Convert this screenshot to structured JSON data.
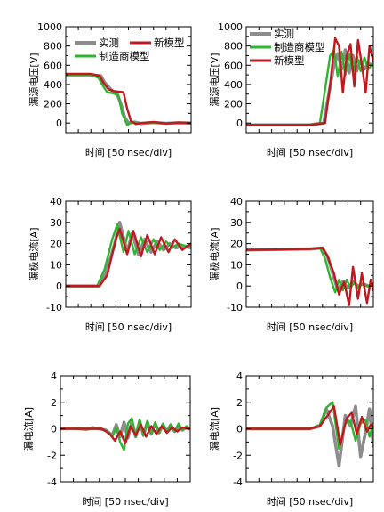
{
  "colors": {
    "measured": "#8c8c8c",
    "vendor": "#2fb52f",
    "new": "#c0181e"
  },
  "chart_data": [
    {
      "type": "line",
      "id": "vds-off",
      "ylabel": "漏源电压[V]",
      "xlabel": "时间 [50 nsec/div]",
      "ylim": [
        -100,
        1000
      ],
      "yticks": [
        0,
        200,
        400,
        600,
        800,
        1000
      ],
      "xlim": [
        0,
        10
      ],
      "xdivs": 10,
      "legend": {
        "placement": "top",
        "entries": [
          {
            "series": "measured",
            "label": "实测"
          },
          {
            "series": "new",
            "label": "新模型"
          },
          {
            "series": "vendor",
            "label": "制造商模型"
          }
        ]
      },
      "series": [
        {
          "name": "实测",
          "key": "measured",
          "x": [
            0,
            2,
            2.8,
            3.1,
            3.8,
            4.1,
            4.4,
            4.7,
            5.0,
            5.5,
            6,
            7,
            8,
            9,
            10
          ],
          "y": [
            500,
            500,
            490,
            420,
            320,
            300,
            200,
            60,
            0,
            10,
            -5,
            5,
            -3,
            3,
            0
          ]
        },
        {
          "name": "制造商模型",
          "key": "vendor",
          "x": [
            0,
            2,
            2.6,
            3.0,
            3.3,
            3.7,
            4.2,
            4.5,
            4.9,
            5.3,
            5.8,
            6.5,
            7.5,
            10
          ],
          "y": [
            500,
            500,
            470,
            380,
            320,
            310,
            290,
            100,
            -20,
            10,
            -5,
            5,
            0,
            0
          ]
        },
        {
          "name": "新模型",
          "key": "new",
          "x": [
            0,
            2,
            2.7,
            3.0,
            3.4,
            3.9,
            4.6,
            4.9,
            5.2,
            5.6,
            6,
            7,
            8,
            9,
            10
          ],
          "y": [
            510,
            510,
            490,
            420,
            350,
            330,
            320,
            150,
            20,
            -10,
            0,
            10,
            -5,
            5,
            0
          ]
        }
      ]
    },
    {
      "type": "line",
      "id": "vds-on",
      "ylabel": "漏源电压[V]",
      "xlabel": "时间 [50 nsec/div]",
      "ylim": [
        -100,
        1000
      ],
      "yticks": [
        0,
        200,
        400,
        600,
        800,
        1000
      ],
      "xlim": [
        0,
        10
      ],
      "xdivs": 10,
      "legend": {
        "placement": "top-left",
        "entries": [
          {
            "series": "measured",
            "label": "实测"
          },
          {
            "series": "vendor",
            "label": "制造商模型"
          },
          {
            "series": "new",
            "label": "新模型"
          }
        ]
      },
      "series": [
        {
          "name": "实测",
          "key": "measured",
          "x": [
            0,
            5,
            6.1,
            6.5,
            6.9,
            7.2,
            7.5,
            7.8,
            8.1,
            8.4,
            8.7,
            9.0,
            9.3,
            9.6,
            10
          ],
          "y": [
            -20,
            -20,
            0,
            300,
            600,
            720,
            560,
            760,
            520,
            700,
            540,
            650,
            560,
            620,
            600
          ]
        },
        {
          "name": "制造商模型",
          "key": "vendor",
          "x": [
            0,
            5,
            5.8,
            6.2,
            6.6,
            6.9,
            7.2,
            7.5,
            7.8,
            8.1,
            8.4,
            8.7,
            9.0,
            9.3,
            9.6,
            10
          ],
          "y": [
            -20,
            -20,
            0,
            350,
            700,
            760,
            480,
            740,
            500,
            720,
            520,
            700,
            540,
            680,
            560,
            620
          ]
        },
        {
          "name": "新模型",
          "key": "new",
          "x": [
            0,
            5,
            6.2,
            6.6,
            7.0,
            7.3,
            7.6,
            7.9,
            8.2,
            8.5,
            8.8,
            9.1,
            9.4,
            9.7,
            10
          ],
          "y": [
            -20,
            -20,
            0,
            400,
            880,
            800,
            320,
            700,
            820,
            380,
            860,
            600,
            320,
            800,
            640
          ]
        }
      ]
    },
    {
      "type": "line",
      "id": "id-off",
      "ylabel": "漏极电流[A]",
      "xlabel": "时间 [50 nsec/div]",
      "ylim": [
        -10,
        40
      ],
      "yticks": [
        -10,
        0,
        10,
        20,
        30,
        40
      ],
      "xlim": [
        0,
        10
      ],
      "xdivs": 10,
      "series": [
        {
          "name": "实测",
          "key": "measured",
          "x": [
            0,
            2,
            2.6,
            3.2,
            3.9,
            4.3,
            4.9,
            5.3,
            5.8,
            6.3,
            6.8,
            7.3,
            7.8,
            8.3,
            8.8,
            9.3,
            10
          ],
          "y": [
            0,
            0,
            0,
            6,
            20,
            30,
            16,
            25,
            15,
            22,
            16,
            21,
            17,
            20,
            18,
            19,
            18
          ]
        },
        {
          "name": "制造商模型",
          "key": "vendor",
          "x": [
            0,
            2,
            2.5,
            3.1,
            3.7,
            4.1,
            4.6,
            5.0,
            5.5,
            6.0,
            6.5,
            7.0,
            7.5,
            8.0,
            8.5,
            9.0,
            9.5,
            10
          ],
          "y": [
            0,
            0,
            0,
            8,
            22,
            29,
            16,
            26,
            15,
            23,
            16,
            22,
            17,
            21,
            18,
            20,
            19,
            19
          ]
        },
        {
          "name": "新模型",
          "key": "new",
          "x": [
            0,
            2,
            2.7,
            3.3,
            4.0,
            4.3,
            4.9,
            5.4,
            6.0,
            6.5,
            7.1,
            7.6,
            8.2,
            8.7,
            9.3,
            10
          ],
          "y": [
            0,
            0,
            0,
            5,
            22,
            27,
            15,
            26,
            14,
            24,
            15,
            23,
            16,
            22,
            17,
            20
          ]
        }
      ]
    },
    {
      "type": "line",
      "id": "id-on",
      "ylabel": "漏极电流[A]",
      "xlabel": "时间 [50 nsec/div]",
      "ylim": [
        -10,
        40
      ],
      "yticks": [
        -10,
        0,
        10,
        20,
        30,
        40
      ],
      "xlim": [
        0,
        10
      ],
      "xdivs": 10,
      "series": [
        {
          "name": "实测",
          "key": "measured",
          "x": [
            0,
            5,
            6.0,
            6.4,
            6.8,
            7.2,
            7.6,
            8.0,
            8.4,
            8.8,
            9.2,
            9.6,
            10
          ],
          "y": [
            17,
            17.5,
            18,
            14,
            6,
            -2,
            2,
            -1,
            2,
            0,
            1,
            0,
            1
          ]
        },
        {
          "name": "制造商模型",
          "key": "vendor",
          "x": [
            0,
            5,
            5.8,
            6.2,
            6.6,
            7.0,
            7.3,
            7.6,
            7.9,
            8.2,
            8.5,
            8.8,
            9.1,
            9.4,
            9.7,
            10
          ],
          "y": [
            17,
            17.5,
            18,
            13,
            4,
            -3,
            3,
            -2,
            3,
            -1,
            2,
            -1,
            1,
            0,
            0,
            1
          ]
        },
        {
          "name": "新模型",
          "key": "new",
          "x": [
            0,
            5,
            6.0,
            6.4,
            6.9,
            7.3,
            7.7,
            8.1,
            8.4,
            8.8,
            9.1,
            9.5,
            9.8,
            10
          ],
          "y": [
            17,
            17.5,
            18,
            14,
            6,
            -4,
            2,
            -9,
            9,
            -6,
            6,
            -8,
            3,
            -2
          ]
        }
      ]
    },
    {
      "type": "line",
      "id": "ig-off",
      "ylabel": "漏电流[A]",
      "xlabel": "时间 [50 nsec/div]",
      "ylim": [
        -4,
        4
      ],
      "yticks": [
        -4,
        -2,
        0,
        2,
        4
      ],
      "xlim": [
        0,
        10
      ],
      "xdivs": 10,
      "series": [
        {
          "name": "实测",
          "key": "measured",
          "x": [
            0,
            1,
            2,
            2.5,
            3,
            3.5,
            4,
            4.3,
            4.6,
            4.9,
            5.2,
            5.5,
            5.8,
            6.1,
            6.4,
            6.7,
            7.0,
            7.3,
            7.6,
            7.9,
            8.2,
            8.5,
            8.8,
            9.1,
            9.4,
            9.7,
            10
          ],
          "y": [
            0,
            0.05,
            -0.05,
            0.08,
            0,
            -0.1,
            -0.5,
            0.3,
            -0.6,
            0.5,
            -0.7,
            0.6,
            -0.6,
            0.6,
            -0.5,
            0.5,
            -0.4,
            0.4,
            -0.3,
            0.3,
            -0.2,
            0.3,
            -0.2,
            0.2,
            -0.1,
            0.1,
            0
          ]
        },
        {
          "name": "制造商模型",
          "key": "vendor",
          "x": [
            0,
            2,
            3.0,
            3.6,
            4.0,
            4.3,
            4.6,
            4.9,
            5.2,
            5.5,
            5.8,
            6.1,
            6.4,
            6.7,
            7.0,
            7.3,
            7.6,
            7.9,
            8.2,
            8.5,
            8.8,
            9.1,
            9.4,
            9.7,
            10
          ],
          "y": [
            0,
            0,
            0,
            -0.2,
            -0.6,
            0.1,
            -1.0,
            -1.6,
            0.4,
            0.8,
            -0.6,
            0.7,
            -0.5,
            0.6,
            -0.4,
            0.5,
            -0.3,
            0.4,
            -0.3,
            0.3,
            -0.2,
            0.4,
            -0.1,
            0.2,
            0
          ]
        },
        {
          "name": "新模型",
          "key": "new",
          "x": [
            0,
            2,
            3.2,
            3.8,
            4.2,
            4.6,
            5.0,
            5.4,
            5.8,
            6.2,
            6.6,
            7.0,
            7.4,
            7.8,
            8.2,
            8.6,
            9.0,
            9.4,
            9.8,
            10
          ],
          "y": [
            0,
            0,
            0,
            -0.4,
            -0.9,
            -0.2,
            -1.1,
            0.2,
            -0.5,
            0.3,
            -0.6,
            0.2,
            -0.4,
            0.2,
            -0.3,
            0.1,
            -0.2,
            0.1,
            0,
            0
          ]
        }
      ]
    },
    {
      "type": "line",
      "id": "ig-on",
      "ylabel": "漏电流[A]",
      "xlabel": "时间 [50 nsec/div]",
      "ylim": [
        -4,
        4
      ],
      "yticks": [
        -4,
        -2,
        0,
        2,
        4
      ],
      "xlim": [
        0,
        10
      ],
      "xdivs": 10,
      "series": [
        {
          "name": "实测",
          "key": "measured",
          "x": [
            0,
            5,
            5.8,
            6.3,
            6.8,
            7.3,
            7.8,
            8.2,
            8.6,
            9.0,
            9.4,
            9.7,
            10
          ],
          "y": [
            0,
            0,
            0.2,
            1.5,
            0.2,
            -2.8,
            1.0,
            0.2,
            1.7,
            -2.1,
            -0.2,
            1.5,
            -1.3
          ]
        },
        {
          "name": "制造商模型",
          "key": "vendor",
          "x": [
            0,
            5,
            5.8,
            6.3,
            6.8,
            7.3,
            7.8,
            8.2,
            8.6,
            9.0,
            9.4,
            9.7,
            10
          ],
          "y": [
            0,
            0,
            0.3,
            1.6,
            2.0,
            -1.5,
            0.4,
            0.6,
            -0.9,
            0.4,
            0.7,
            -0.6,
            0.4
          ]
        },
        {
          "name": "新模型",
          "key": "new",
          "x": [
            0,
            5,
            5.8,
            6.4,
            6.9,
            7.4,
            7.9,
            8.3,
            8.7,
            9.1,
            9.5,
            9.8,
            10
          ],
          "y": [
            0,
            0,
            0.2,
            1.0,
            1.7,
            -1.2,
            0.8,
            1.2,
            -0.4,
            0.9,
            -0.2,
            0.3,
            0.1
          ]
        }
      ]
    }
  ]
}
